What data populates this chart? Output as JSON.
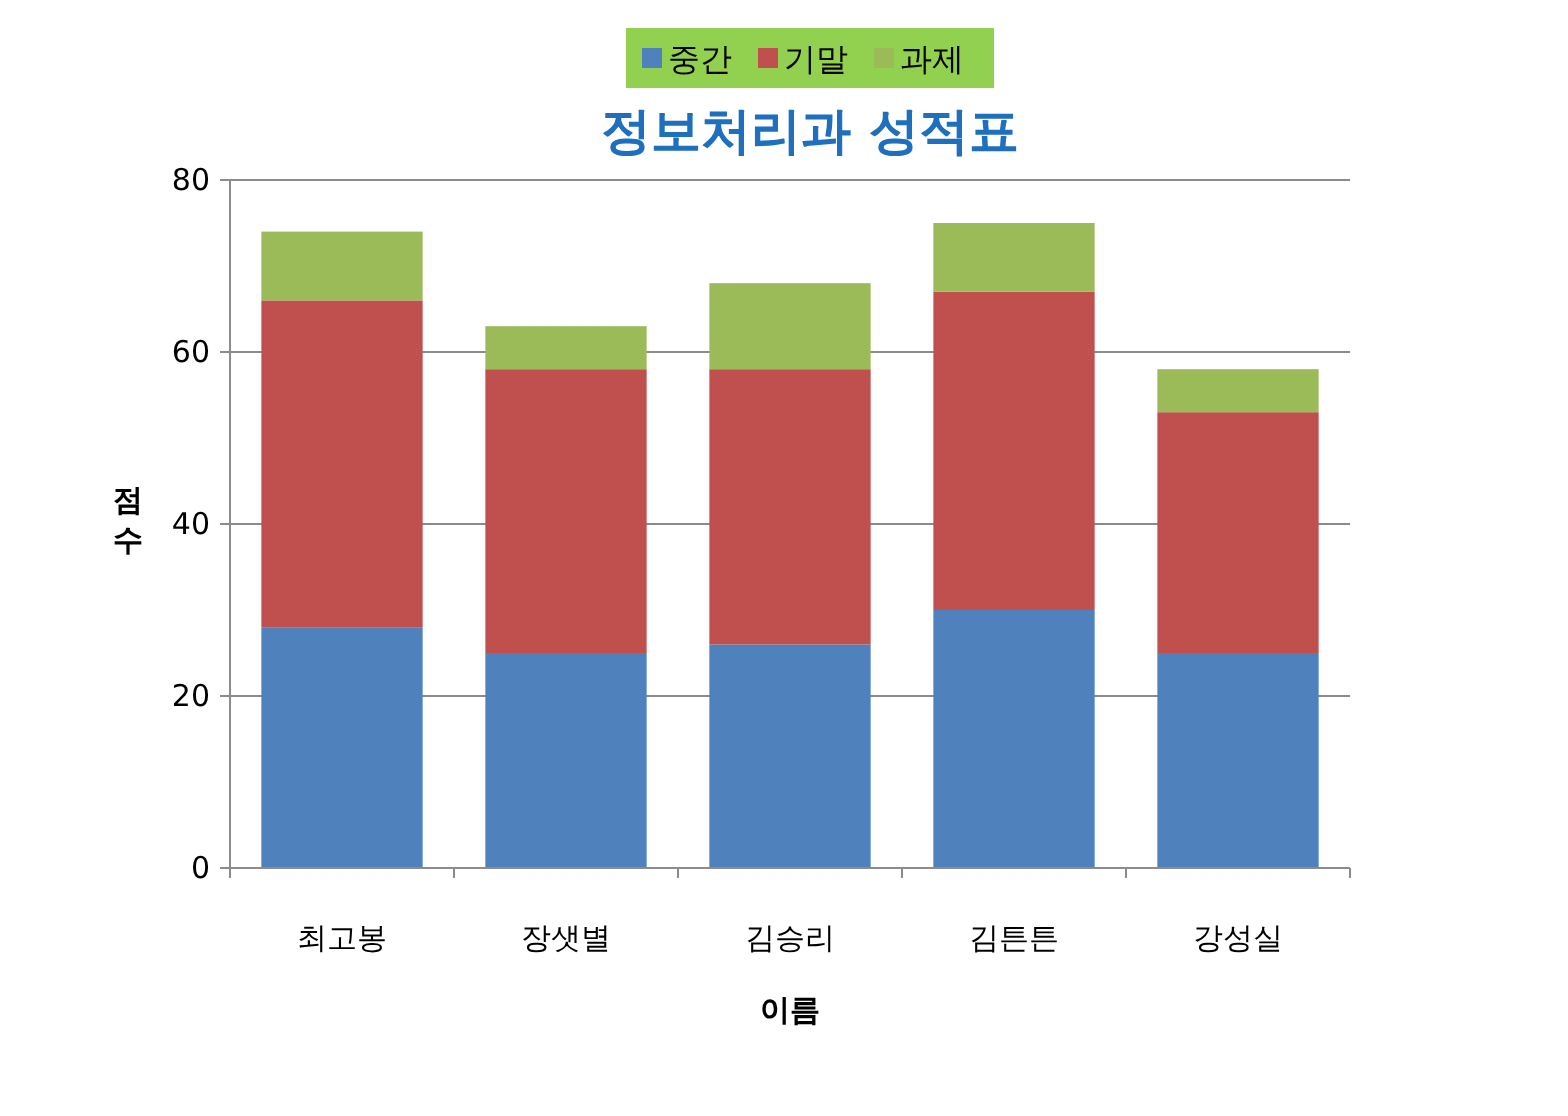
{
  "chart_data": {
    "type": "bar",
    "title": "정보처리과 성적표",
    "xlabel": "이름",
    "ylabel": "점수",
    "stacked": true,
    "categories": [
      "최고봉",
      "장샛별",
      "김승리",
      "김튼튼",
      "강성실"
    ],
    "series": [
      {
        "name": "중간",
        "color": "#4f81bd",
        "values": [
          28,
          25,
          26,
          30,
          25
        ]
      },
      {
        "name": "기말",
        "color": "#c0504d",
        "values": [
          38,
          33,
          32,
          37,
          28
        ]
      },
      {
        "name": "과제",
        "color": "#9bbb59",
        "values": [
          8,
          5,
          10,
          8,
          5
        ]
      }
    ],
    "ylim": [
      0,
      80
    ],
    "yticks": [
      0,
      20,
      40,
      60,
      80
    ],
    "grid": "y",
    "legend": "top"
  }
}
